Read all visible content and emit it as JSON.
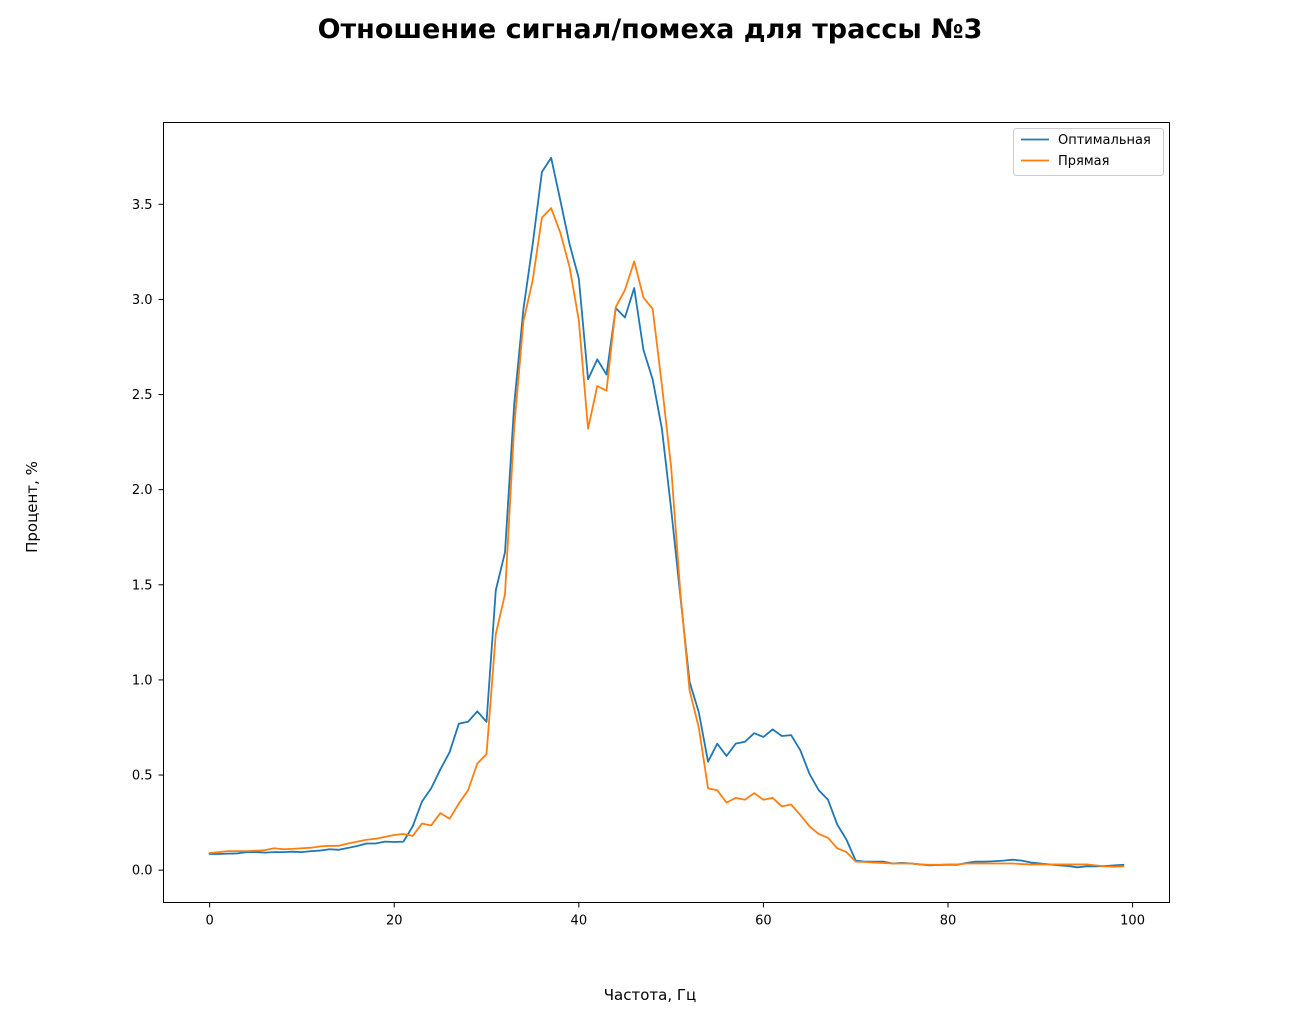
{
  "chart_data": {
    "type": "line",
    "title": "Отношение сигнал/помеха для трассы №3",
    "xlabel": "Частота, Гц",
    "ylabel": "Процент, %",
    "xlim": [
      -5,
      104
    ],
    "ylim": [
      -0.17,
      3.93
    ],
    "xticks": [
      0,
      20,
      40,
      60,
      80,
      100
    ],
    "xtick_labels": [
      "0",
      "20",
      "40",
      "60",
      "80",
      "100"
    ],
    "yticks": [
      0.0,
      0.5,
      1.0,
      1.5,
      2.0,
      2.5,
      3.0,
      3.5
    ],
    "ytick_labels": [
      "0.0",
      "0.5",
      "1.0",
      "1.5",
      "2.0",
      "2.5",
      "3.0",
      "3.5"
    ],
    "grid": false,
    "legend_position": "upper-right",
    "x": [
      0,
      1,
      2,
      3,
      4,
      5,
      6,
      7,
      8,
      9,
      10,
      11,
      12,
      13,
      14,
      15,
      16,
      17,
      18,
      19,
      20,
      21,
      22,
      23,
      24,
      25,
      26,
      27,
      28,
      29,
      30,
      31,
      32,
      33,
      34,
      35,
      36,
      37,
      38,
      39,
      40,
      41,
      42,
      43,
      44,
      45,
      46,
      47,
      48,
      49,
      50,
      51,
      52,
      53,
      54,
      55,
      56,
      57,
      58,
      59,
      60,
      61,
      62,
      63,
      64,
      65,
      66,
      67,
      68,
      69,
      70,
      71,
      72,
      73,
      74,
      75,
      76,
      77,
      78,
      79,
      80,
      81,
      82,
      83,
      84,
      85,
      86,
      87,
      88,
      89,
      90,
      91,
      92,
      93,
      94,
      95,
      96,
      97,
      98,
      99
    ],
    "series": [
      {
        "name": "Оптимальная",
        "color": "#1f77b4",
        "values": [
          0.085,
          0.085,
          0.087,
          0.088,
          0.095,
          0.095,
          0.092,
          0.095,
          0.095,
          0.097,
          0.095,
          0.1,
          0.103,
          0.11,
          0.107,
          0.117,
          0.127,
          0.14,
          0.14,
          0.15,
          0.148,
          0.15,
          0.23,
          0.36,
          0.43,
          0.53,
          0.62,
          0.77,
          0.78,
          0.835,
          0.78,
          1.47,
          1.67,
          2.45,
          2.95,
          3.29,
          3.67,
          3.745,
          3.52,
          3.29,
          3.11,
          2.58,
          2.685,
          2.605,
          2.955,
          2.905,
          3.06,
          2.735,
          2.58,
          2.32,
          1.9,
          1.44,
          0.99,
          0.83,
          0.57,
          0.665,
          0.6,
          0.665,
          0.675,
          0.72,
          0.7,
          0.74,
          0.705,
          0.71,
          0.63,
          0.505,
          0.42,
          0.37,
          0.24,
          0.16,
          0.05,
          0.045,
          0.045,
          0.045,
          0.035,
          0.038,
          0.035,
          0.03,
          0.025,
          0.027,
          0.028,
          0.028,
          0.038,
          0.045,
          0.045,
          0.047,
          0.05,
          0.055,
          0.05,
          0.04,
          0.035,
          0.03,
          0.025,
          0.022,
          0.015,
          0.02,
          0.02,
          0.022,
          0.025,
          0.028
        ]
      },
      {
        "name": "Прямая",
        "color": "#ff7f0e",
        "values": [
          0.09,
          0.095,
          0.1,
          0.1,
          0.1,
          0.102,
          0.105,
          0.115,
          0.11,
          0.112,
          0.115,
          0.118,
          0.125,
          0.128,
          0.128,
          0.14,
          0.15,
          0.16,
          0.165,
          0.175,
          0.185,
          0.19,
          0.18,
          0.245,
          0.235,
          0.3,
          0.27,
          0.35,
          0.42,
          0.56,
          0.61,
          1.24,
          1.45,
          2.33,
          2.885,
          3.1,
          3.43,
          3.48,
          3.35,
          3.17,
          2.89,
          2.32,
          2.545,
          2.52,
          2.96,
          3.05,
          3.2,
          3.01,
          2.95,
          2.55,
          2.12,
          1.46,
          0.945,
          0.75,
          0.43,
          0.42,
          0.355,
          0.38,
          0.37,
          0.405,
          0.37,
          0.38,
          0.335,
          0.345,
          0.29,
          0.23,
          0.19,
          0.17,
          0.115,
          0.095,
          0.045,
          0.043,
          0.04,
          0.038,
          0.035,
          0.035,
          0.035,
          0.03,
          0.028,
          0.028,
          0.03,
          0.03,
          0.035,
          0.035,
          0.035,
          0.035,
          0.035,
          0.035,
          0.032,
          0.03,
          0.03,
          0.03,
          0.03,
          0.03,
          0.03,
          0.03,
          0.025,
          0.02,
          0.018,
          0.02
        ]
      }
    ]
  }
}
